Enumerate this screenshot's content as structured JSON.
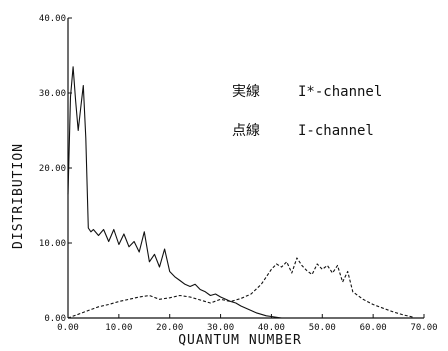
{
  "chart_data": {
    "type": "line",
    "title": "",
    "xlabel": "QUANTUM NUMBER",
    "ylabel": "DISTRIBUTION",
    "xlim": [
      0,
      70
    ],
    "ylim": [
      0,
      40
    ],
    "grid": false,
    "x_ticks": [
      "0.00",
      "10.00",
      "20.00",
      "30.00",
      "40.00",
      "50.00",
      "60.00",
      "70.00"
    ],
    "y_ticks": [
      "0.00",
      "10.00",
      "20.00",
      "30.00",
      "40.00"
    ],
    "legend_position": "top-right",
    "series": [
      {
        "name": "I*-channel",
        "legend_prefix": "実線",
        "style": "solid",
        "x": [
          0,
          0.5,
          1,
          1.5,
          2,
          2.5,
          3,
          3.5,
          4,
          4.5,
          5,
          6,
          7,
          8,
          9,
          10,
          11,
          12,
          13,
          14,
          15,
          16,
          17,
          18,
          19,
          20,
          21,
          22,
          23,
          24,
          25,
          26,
          27,
          28,
          29,
          30,
          31,
          32,
          33,
          34,
          35,
          36,
          37,
          38,
          39,
          40,
          41,
          42
        ],
        "values": [
          16.5,
          29.5,
          33.5,
          29.0,
          25.0,
          28.0,
          31.0,
          24.0,
          12.0,
          11.5,
          11.8,
          11.0,
          11.8,
          10.2,
          11.8,
          9.8,
          11.2,
          9.5,
          10.2,
          8.8,
          11.5,
          7.5,
          8.5,
          6.8,
          9.2,
          6.2,
          5.5,
          5.0,
          4.5,
          4.2,
          4.5,
          3.8,
          3.5,
          3.0,
          3.2,
          2.8,
          2.5,
          2.2,
          2.0,
          1.6,
          1.3,
          1.0,
          0.7,
          0.5,
          0.3,
          0.2,
          0.1,
          0.0
        ]
      },
      {
        "name": "I-channel",
        "legend_prefix": "点線",
        "style": "dashed",
        "x": [
          0,
          2,
          4,
          6,
          8,
          10,
          12,
          14,
          16,
          18,
          20,
          22,
          24,
          26,
          28,
          30,
          32,
          34,
          36,
          38,
          40,
          41,
          42,
          43,
          44,
          45,
          46,
          47,
          48,
          49,
          50,
          51,
          52,
          53,
          54,
          55,
          56,
          58,
          60,
          62,
          64,
          66,
          68
        ],
        "values": [
          0.0,
          0.5,
          1.0,
          1.5,
          1.8,
          2.2,
          2.5,
          2.8,
          3.0,
          2.5,
          2.7,
          3.0,
          2.8,
          2.4,
          2.0,
          2.5,
          2.2,
          2.6,
          3.2,
          4.5,
          6.5,
          7.2,
          6.8,
          7.5,
          6.0,
          8.0,
          7.0,
          6.3,
          5.8,
          7.2,
          6.5,
          7.0,
          6.0,
          7.0,
          4.8,
          6.2,
          3.5,
          2.5,
          1.8,
          1.3,
          0.8,
          0.4,
          0.1
        ]
      }
    ]
  }
}
